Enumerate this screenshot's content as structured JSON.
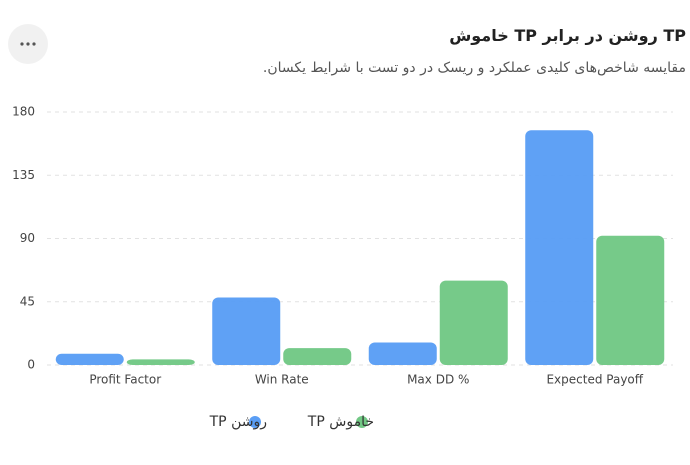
{
  "chart_data": {
    "type": "bar",
    "title": "TP روشن در برابر TP خاموش",
    "subtitle": "مقایسه شاخص‌های کلیدی عملکرد و ریسک در دو تست با شرایط یکسان.",
    "categories": [
      "Profit Factor",
      "Win Rate",
      "Max DD %",
      "Expected Payoff"
    ],
    "series": [
      {
        "name": "TP روشن",
        "color": "#5a9ef5",
        "values": [
          8,
          48,
          16,
          167
        ]
      },
      {
        "name": "TP خاموش",
        "color": "#72c885",
        "values": [
          4,
          12,
          60,
          92
        ]
      }
    ],
    "ylim": [
      0,
      180
    ],
    "yticks": [
      0,
      45,
      90,
      135,
      180
    ],
    "grid": true
  }
}
